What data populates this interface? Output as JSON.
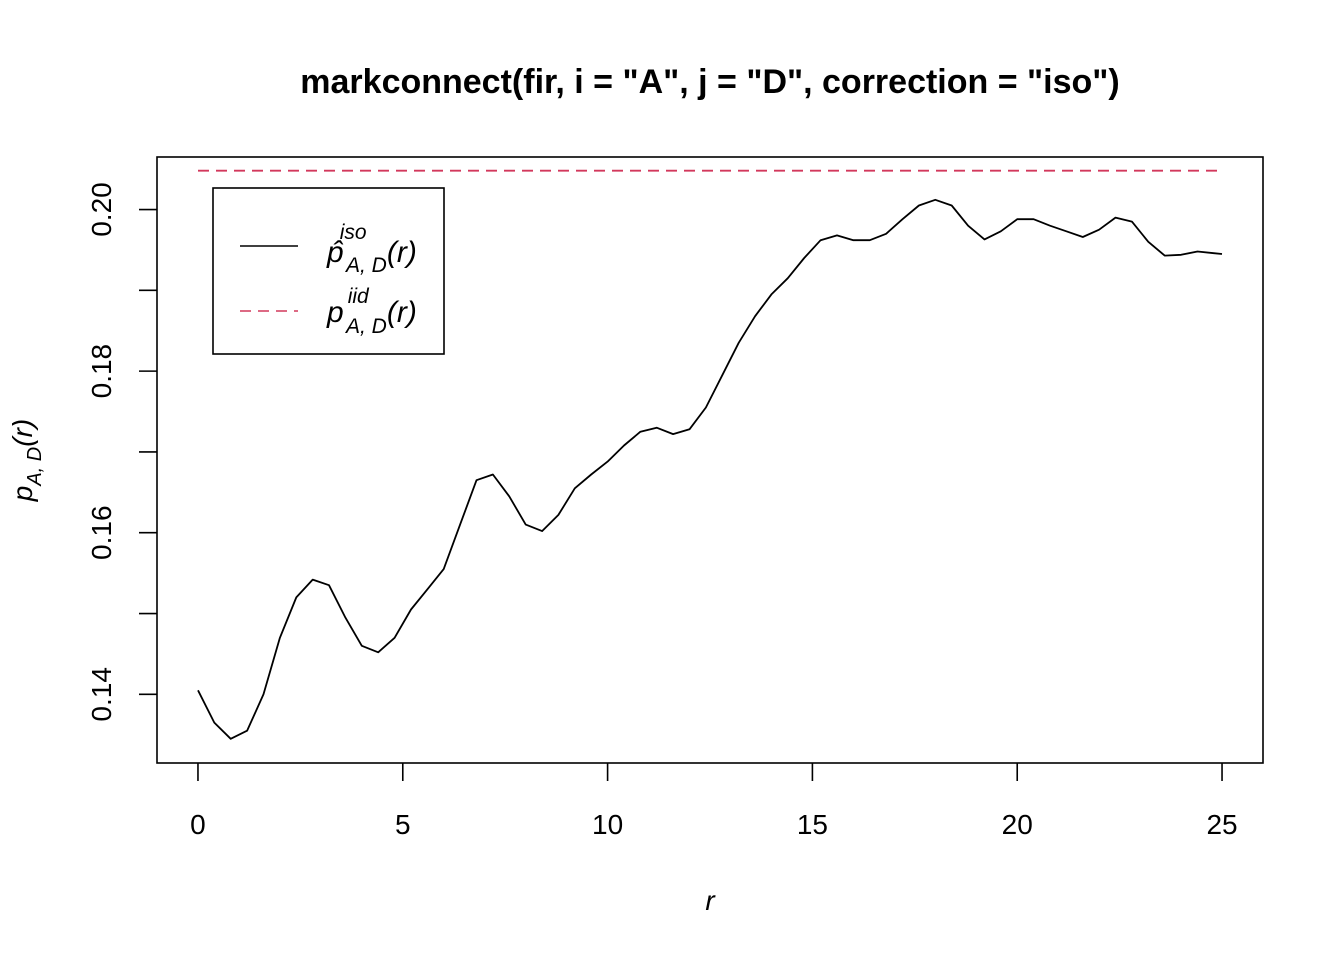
{
  "chart_data": {
    "type": "line",
    "title": "markconnect(fir, i = \"A\", j = \"D\", correction = \"iso\")",
    "xlabel": "r",
    "ylabel": {
      "base": "p",
      "sub": "A, D",
      "arg": "(r)"
    },
    "xlim": [
      -1,
      26
    ],
    "ylim": [
      0.1315,
      0.2065
    ],
    "xticks": [
      0,
      5,
      10,
      15,
      20,
      25
    ],
    "yticks": [
      0.14,
      0.15,
      0.16,
      0.17,
      0.18,
      0.19,
      0.2
    ],
    "ytick_labels": [
      "0.14",
      "",
      "0.16",
      "",
      "0.18",
      "",
      "0.20"
    ],
    "grid": false,
    "legend_position": "top-left",
    "series": [
      {
        "legend": {
          "base": "p̂",
          "sup": "iso",
          "sub": "A, D",
          "arg": "(r)"
        },
        "color": "#000000",
        "dash": "solid",
        "x": [
          0,
          0.4,
          0.8,
          1.2,
          1.6,
          2.0,
          2.4,
          2.8,
          3.2,
          3.6,
          4.0,
          4.4,
          4.8,
          5.2,
          5.6,
          6.0,
          6.4,
          6.8,
          7.2,
          7.6,
          8.0,
          8.4,
          8.8,
          9.2,
          9.6,
          10.0,
          10.4,
          10.8,
          11.2,
          11.6,
          12.0,
          12.4,
          12.8,
          13.2,
          13.6,
          14.0,
          14.4,
          14.8,
          15.2,
          15.6,
          16.0,
          16.4,
          16.8,
          17.2,
          17.6,
          18.0,
          18.4,
          18.8,
          19.2,
          19.6,
          20.0,
          20.4,
          20.8,
          21.2,
          21.6,
          22.0,
          22.4,
          22.8,
          23.2,
          23.6,
          24.0,
          24.4,
          24.8,
          25.0
        ],
        "values": [
          0.1405,
          0.1365,
          0.1345,
          0.1355,
          0.14,
          0.147,
          0.152,
          0.1542,
          0.1535,
          0.1495,
          0.146,
          0.1452,
          0.147,
          0.1505,
          0.153,
          0.1555,
          0.161,
          0.1665,
          0.1672,
          0.1645,
          0.161,
          0.1602,
          0.1622,
          0.1655,
          0.1672,
          0.1688,
          0.1708,
          0.1725,
          0.173,
          0.1722,
          0.1728,
          0.1755,
          0.1795,
          0.1835,
          0.1868,
          0.1895,
          0.1915,
          0.194,
          0.1962,
          0.1968,
          0.1962,
          0.1962,
          0.197,
          0.1988,
          0.2005,
          0.2012,
          0.2005,
          0.198,
          0.1963,
          0.1973,
          0.1988,
          0.1988,
          0.198,
          0.1973,
          0.1966,
          0.1975,
          0.199,
          0.1985,
          0.196,
          0.1943,
          0.1944,
          0.1948,
          0.1946,
          0.1945
        ]
      },
      {
        "legend": {
          "base": "p",
          "sup": "iid",
          "sub": "A, D",
          "arg": "(r)"
        },
        "color": "#d2385c",
        "dash": "dashed",
        "x": [
          0,
          25
        ],
        "values": [
          0.2048,
          0.2048
        ]
      }
    ]
  }
}
